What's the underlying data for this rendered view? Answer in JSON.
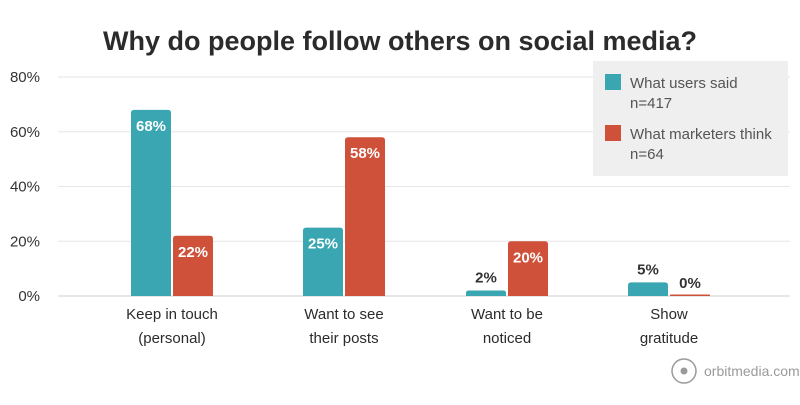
{
  "chart_data": {
    "type": "bar",
    "title": "Why do people follow others on social media?",
    "categories": [
      "Keep in touch\n(personal)",
      "Want to see\ntheir posts",
      "Want to be\nnoticed",
      "Show\ngratitude"
    ],
    "series": [
      {
        "name": "What users said\nn=417",
        "values": [
          68,
          25,
          2,
          5
        ],
        "color": "#3aa6b2"
      },
      {
        "name": "What marketers think\nn=64",
        "values": [
          22,
          58,
          20,
          0
        ],
        "color": "#d0513a"
      }
    ],
    "yticks": [
      "0%",
      "20%",
      "40%",
      "60%",
      "80%"
    ],
    "ylim": [
      0,
      80
    ],
    "value_suffix": "%",
    "grid": true,
    "legend_position": "top-right",
    "watermark": "orbitmedia.com"
  }
}
